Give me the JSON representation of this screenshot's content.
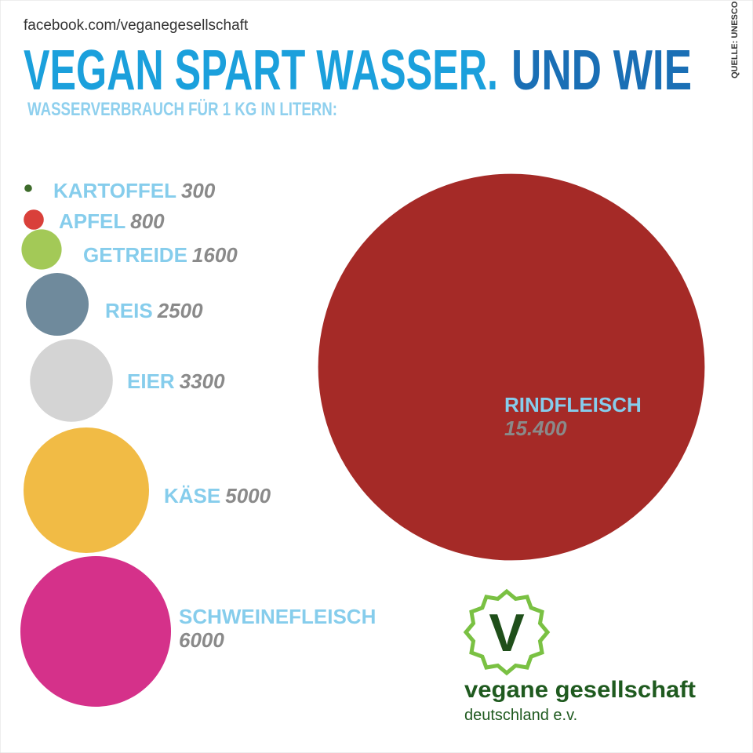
{
  "header": {
    "url": "facebook.com/veganegesellschaft",
    "source": "QUELLE: UNESCO"
  },
  "chart_data": {
    "type": "bubble",
    "title": "VEGAN SPART WASSER.",
    "title_accent": "UND WIE",
    "subtitle": "WASSERVERBRAUCH FÜR 1 KG IN LITERN:",
    "categories": [
      "KARTOFFEL",
      "APFEL",
      "GETREIDE",
      "REIS",
      "EIER",
      "KÄSE",
      "SCHWEINEFLEISCH",
      "RINDFLEISCH"
    ],
    "values": [
      300,
      800,
      1600,
      2500,
      3300,
      5000,
      6000,
      15400
    ],
    "value_labels": [
      "300",
      "800",
      "1600",
      "2500",
      "3300",
      "5000",
      "6000",
      "15.400"
    ],
    "colors": [
      "#3d6b2a",
      "#d9403a",
      "#a3c957",
      "#6f8a9c",
      "#d4d4d4",
      "#f1bb45",
      "#d5318a",
      "#a52a27"
    ]
  },
  "logo": {
    "mark": "V",
    "name": "vegane gesellschaft",
    "sub": "deutschland e.v."
  }
}
